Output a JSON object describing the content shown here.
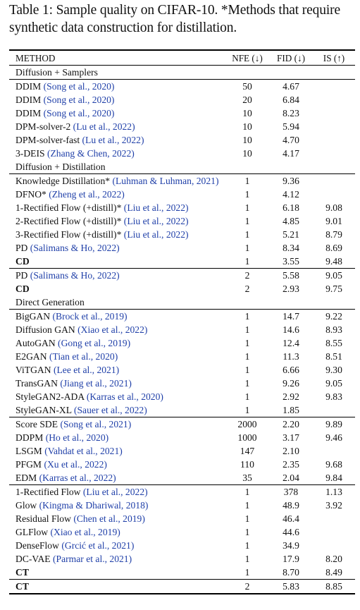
{
  "caption": "Table 1: Sample quality on CIFAR-10. *Methods that require synthetic data construction for distillation.",
  "headers": {
    "method": "METHOD",
    "nfe": "NFE (↓)",
    "fid": "FID (↓)",
    "is": "IS (↑)"
  },
  "sections": [
    {
      "title": "Diffusion + Samplers",
      "groups": [
        [
          {
            "name": "DDIM",
            "cite": "(Song et al., 2020)",
            "nfe": "50",
            "fid": "4.67",
            "is": ""
          },
          {
            "name": "DDIM",
            "cite": "(Song et al., 2020)",
            "nfe": "20",
            "fid": "6.84",
            "is": ""
          },
          {
            "name": "DDIM",
            "cite": "(Song et al., 2020)",
            "nfe": "10",
            "fid": "8.23",
            "is": ""
          },
          {
            "name": "DPM-solver-2",
            "cite": "(Lu et al., 2022)",
            "nfe": "10",
            "fid": "5.94",
            "is": ""
          },
          {
            "name": "DPM-solver-fast",
            "cite": "(Lu et al., 2022)",
            "nfe": "10",
            "fid": "4.70",
            "is": ""
          },
          {
            "name": "3-DEIS",
            "cite": "(Zhang & Chen, 2022)",
            "nfe": "10",
            "fid": "4.17",
            "is": "",
            "fid_bold": true
          }
        ]
      ]
    },
    {
      "title": "Diffusion + Distillation",
      "groups": [
        [
          {
            "name": "Knowledge Distillation*",
            "cite": "(Luhman & Luhman, 2021)",
            "nfe": "1",
            "fid": "9.36",
            "is": ""
          },
          {
            "name": "DFNO*",
            "cite": "(Zheng et al., 2022)",
            "nfe": "1",
            "fid": "4.12",
            "is": ""
          },
          {
            "name": "1-Rectified Flow (+distill)*",
            "cite": "(Liu et al., 2022)",
            "nfe": "1",
            "fid": "6.18",
            "is": "9.08"
          },
          {
            "name": "2-Rectified Flow (+distill)*",
            "cite": "(Liu et al., 2022)",
            "nfe": "1",
            "fid": "4.85",
            "is": "9.01"
          },
          {
            "name": "3-Rectified Flow (+distill)*",
            "cite": "(Liu et al., 2022)",
            "nfe": "1",
            "fid": "5.21",
            "is": "8.79"
          },
          {
            "name": "PD",
            "cite": "(Salimans & Ho, 2022)",
            "nfe": "1",
            "fid": "8.34",
            "is": "8.69"
          },
          {
            "name": "CD",
            "cite": "",
            "nfe": "1",
            "fid": "3.55",
            "is": "9.48",
            "name_bold": true,
            "fid_bold": true,
            "is_bold": true
          }
        ],
        [
          {
            "name": "PD",
            "cite": "(Salimans & Ho, 2022)",
            "nfe": "2",
            "fid": "5.58",
            "is": "9.05"
          },
          {
            "name": "CD",
            "cite": "",
            "nfe": "2",
            "fid": "2.93",
            "is": "9.75",
            "name_bold": true,
            "fid_bold": true,
            "is_bold": true
          }
        ]
      ]
    },
    {
      "title": "Direct Generation",
      "groups": [
        [
          {
            "name": "BigGAN",
            "cite": "(Brock et al., 2019)",
            "nfe": "1",
            "fid": "14.7",
            "is": "9.22"
          },
          {
            "name": "Diffusion GAN",
            "cite": "(Xiao et al., 2022)",
            "nfe": "1",
            "fid": "14.6",
            "is": "8.93"
          },
          {
            "name": "AutoGAN",
            "cite": "(Gong et al., 2019)",
            "nfe": "1",
            "fid": "12.4",
            "is": "8.55"
          },
          {
            "name": "E2GAN",
            "cite": "(Tian et al., 2020)",
            "nfe": "1",
            "fid": "11.3",
            "is": "8.51"
          },
          {
            "name": "ViTGAN",
            "cite": "(Lee et al., 2021)",
            "nfe": "1",
            "fid": "6.66",
            "is": "9.30"
          },
          {
            "name": "TransGAN",
            "cite": "(Jiang et al., 2021)",
            "nfe": "1",
            "fid": "9.26",
            "is": "9.05"
          },
          {
            "name": "StyleGAN2-ADA",
            "cite": "(Karras et al., 2020)",
            "nfe": "1",
            "fid": "2.92",
            "is": "9.83",
            "is_bold": true
          },
          {
            "name": "StyleGAN-XL",
            "cite": "(Sauer et al., 2022)",
            "nfe": "1",
            "fid": "1.85",
            "is": "",
            "fid_bold": true
          }
        ],
        [
          {
            "name": "Score SDE",
            "cite": "(Song et al., 2021)",
            "nfe": "2000",
            "fid": "2.20",
            "is": "9.89",
            "is_bold": true
          },
          {
            "name": "DDPM",
            "cite": "(Ho et al., 2020)",
            "nfe": "1000",
            "fid": "3.17",
            "is": "9.46"
          },
          {
            "name": "LSGM",
            "cite": "(Vahdat et al., 2021)",
            "nfe": "147",
            "fid": "2.10",
            "is": ""
          },
          {
            "name": "PFGM",
            "cite": "(Xu et al., 2022)",
            "nfe": "110",
            "fid": "2.35",
            "is": "9.68"
          },
          {
            "name": "EDM",
            "cite": "(Karras et al., 2022)",
            "nfe": "35",
            "fid": "2.04",
            "is": "9.84",
            "fid_bold": true
          }
        ],
        [
          {
            "name": "1-Rectified Flow",
            "cite": "(Liu et al., 2022)",
            "nfe": "1",
            "fid": "378",
            "is": "1.13"
          },
          {
            "name": "Glow",
            "cite": "(Kingma & Dhariwal, 2018)",
            "nfe": "1",
            "fid": "48.9",
            "is": "3.92"
          },
          {
            "name": "Residual Flow",
            "cite": "(Chen et al., 2019)",
            "nfe": "1",
            "fid": "46.4",
            "is": ""
          },
          {
            "name": "GLFlow",
            "cite": "(Xiao et al., 2019)",
            "nfe": "1",
            "fid": "44.6",
            "is": ""
          },
          {
            "name": "DenseFlow",
            "cite": "(Grcić et al., 2021)",
            "nfe": "1",
            "fid": "34.9",
            "is": ""
          },
          {
            "name": "DC-VAE",
            "cite": "(Parmar et al., 2021)",
            "nfe": "1",
            "fid": "17.9",
            "is": "8.20"
          },
          {
            "name": "CT",
            "cite": "",
            "nfe": "1",
            "fid": "8.70",
            "is": "8.49",
            "name_bold": true,
            "fid_bold": true,
            "is_bold": true
          }
        ],
        [
          {
            "name": "CT",
            "cite": "",
            "nfe": "2",
            "fid": "5.83",
            "is": "8.85",
            "name_bold": true,
            "fid_bold": true,
            "is_bold": true
          }
        ]
      ]
    }
  ]
}
